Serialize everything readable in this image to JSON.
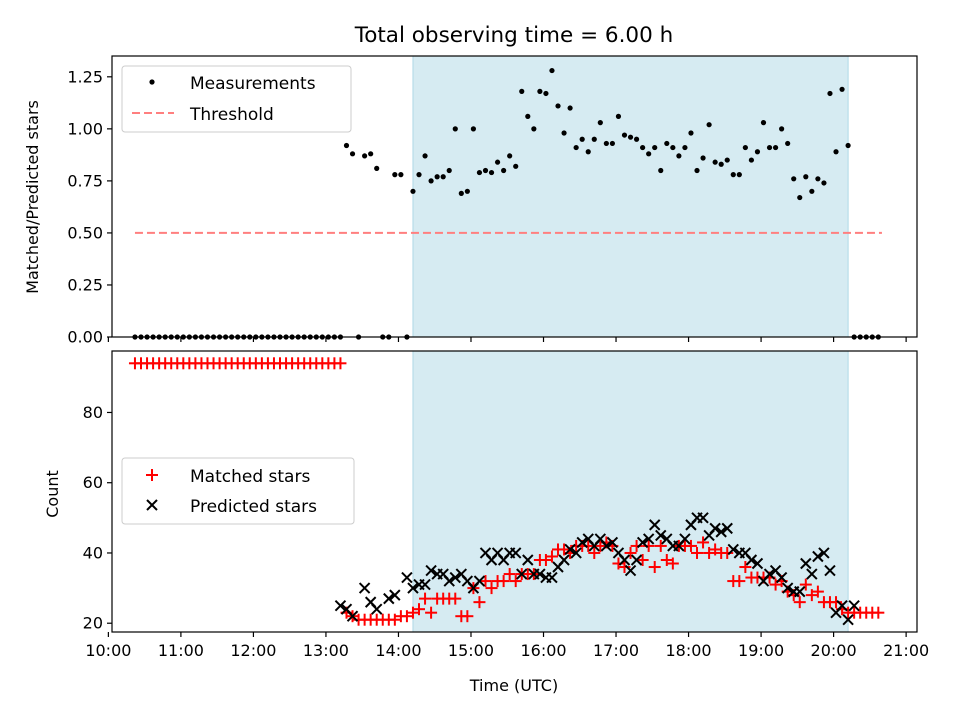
{
  "figure": {
    "title": "Total observing time = 6.00 h"
  },
  "colors": {
    "shade": "#add8e6",
    "measurement": "#000000",
    "threshold": "#ff7f7f",
    "matched": "#ff0000",
    "predicted": "#000000"
  },
  "chart_data": [
    {
      "type": "scatter",
      "title": "Total observing time = 6.00 h",
      "xlabel": "",
      "ylabel": "Matched/Predicted stars",
      "xlim": [
        "10:03",
        "21:09"
      ],
      "ylim": [
        0.0,
        1.35
      ],
      "yticks": [
        "0.00",
        "0.25",
        "0.50",
        "0.75",
        "1.00",
        "1.25"
      ],
      "shaded_interval": [
        "14:12",
        "20:12"
      ],
      "legend": {
        "placement": "top-left",
        "entries": [
          "Measurements",
          "Threshold"
        ]
      },
      "threshold": {
        "name": "Threshold",
        "y": 0.5,
        "x_range": [
          "10:22",
          "20:40"
        ]
      },
      "series": [
        {
          "name": "Measurements",
          "x": [
            "10:22",
            "10:27",
            "10:32",
            "10:37",
            "10:42",
            "10:47",
            "10:52",
            "10:57",
            "11:02",
            "11:07",
            "11:12",
            "11:17",
            "11:22",
            "11:27",
            "11:32",
            "11:37",
            "11:42",
            "11:47",
            "11:52",
            "11:57",
            "12:02",
            "12:07",
            "12:12",
            "12:17",
            "12:22",
            "12:27",
            "12:32",
            "12:37",
            "12:42",
            "12:47",
            "12:52",
            "12:57",
            "13:02",
            "13:07",
            "13:12",
            "13:17",
            "13:22",
            "13:27",
            "13:32",
            "13:37",
            "13:42",
            "13:47",
            "13:52",
            "13:57",
            "14:02",
            "14:07",
            "14:12",
            "14:17",
            "14:22",
            "14:27",
            "14:32",
            "14:37",
            "14:42",
            "14:47",
            "14:52",
            "14:57",
            "15:02",
            "15:07",
            "15:12",
            "15:17",
            "15:22",
            "15:27",
            "15:32",
            "15:37",
            "15:42",
            "15:47",
            "15:52",
            "15:57",
            "16:02",
            "16:07",
            "16:12",
            "16:17",
            "16:22",
            "16:27",
            "16:32",
            "16:37",
            "16:42",
            "16:47",
            "16:52",
            "16:57",
            "17:02",
            "17:07",
            "17:12",
            "17:17",
            "17:22",
            "17:27",
            "17:32",
            "17:37",
            "17:42",
            "17:47",
            "17:52",
            "17:57",
            "18:02",
            "18:07",
            "18:12",
            "18:17",
            "18:22",
            "18:27",
            "18:32",
            "18:37",
            "18:42",
            "18:47",
            "18:52",
            "18:57",
            "19:02",
            "19:07",
            "19:12",
            "19:17",
            "19:22",
            "19:27",
            "19:32",
            "19:37",
            "19:42",
            "19:47",
            "19:52",
            "19:57",
            "20:02",
            "20:07",
            "20:12",
            "20:17",
            "20:22",
            "20:27",
            "20:32",
            "20:37"
          ],
          "y": [
            0,
            0,
            0,
            0,
            0,
            0,
            0,
            0,
            0,
            0,
            0,
            0,
            0,
            0,
            0,
            0,
            0,
            0,
            0,
            0,
            0,
            0,
            0,
            0,
            0,
            0,
            0,
            0,
            0,
            0,
            0,
            0,
            0,
            0,
            0,
            0.92,
            0.88,
            0,
            0.87,
            0.88,
            0.81,
            0,
            0,
            0.78,
            0.78,
            0,
            0.7,
            0.78,
            0.87,
            0.75,
            0.77,
            0.77,
            0.8,
            1.0,
            0.69,
            0.7,
            1.0,
            0.79,
            0.8,
            0.79,
            0.84,
            0.8,
            0.87,
            0.82,
            1.18,
            1.06,
            1.0,
            1.18,
            1.17,
            1.28,
            1.11,
            0.98,
            1.1,
            0.91,
            0.95,
            0.89,
            0.95,
            1.03,
            0.93,
            0.93,
            1.06,
            0.97,
            0.96,
            0.95,
            0.91,
            0.88,
            0.91,
            0.8,
            0.93,
            0.91,
            0.87,
            0.91,
            0.98,
            0.8,
            0.86,
            1.02,
            0.84,
            0.83,
            0.85,
            0.78,
            0.78,
            0.91,
            0.85,
            0.89,
            1.03,
            0.91,
            0.91,
            1.0,
            0.93,
            0.76,
            0.67,
            0.77,
            0.7,
            0.76,
            0.74,
            1.17,
            0.89,
            1.19,
            0.92,
            0,
            0,
            0,
            0,
            0
          ]
        }
      ]
    },
    {
      "type": "scatter",
      "title": "",
      "xlabel": "Time (UTC)",
      "ylabel": "Count",
      "xlim": [
        "10:03",
        "21:09"
      ],
      "ylim": [
        17.5,
        97.5
      ],
      "xticks": [
        "10:00",
        "11:00",
        "12:00",
        "13:00",
        "14:00",
        "15:00",
        "16:00",
        "17:00",
        "18:00",
        "19:00",
        "20:00",
        "21:00"
      ],
      "yticks": [
        "20",
        "40",
        "60",
        "80"
      ],
      "shaded_interval": [
        "14:12",
        "20:12"
      ],
      "legend": {
        "placement": "center-left",
        "entries": [
          "Matched stars",
          "Predicted stars"
        ]
      },
      "series": [
        {
          "name": "Matched stars",
          "x": [
            "10:22",
            "10:27",
            "10:32",
            "10:37",
            "10:42",
            "10:47",
            "10:52",
            "10:57",
            "11:02",
            "11:07",
            "11:12",
            "11:17",
            "11:22",
            "11:27",
            "11:32",
            "11:37",
            "11:42",
            "11:47",
            "11:52",
            "11:57",
            "12:02",
            "12:07",
            "12:12",
            "12:17",
            "12:22",
            "12:27",
            "12:32",
            "12:37",
            "12:42",
            "12:47",
            "12:52",
            "12:57",
            "13:02",
            "13:07",
            "13:12",
            "13:17",
            "13:22",
            "13:27",
            "13:32",
            "13:37",
            "13:42",
            "13:47",
            "13:52",
            "13:57",
            "14:02",
            "14:07",
            "14:12",
            "14:17",
            "14:22",
            "14:27",
            "14:32",
            "14:37",
            "14:42",
            "14:47",
            "14:52",
            "14:57",
            "15:02",
            "15:07",
            "15:12",
            "15:17",
            "15:22",
            "15:27",
            "15:32",
            "15:37",
            "15:42",
            "15:47",
            "15:52",
            "15:57",
            "16:02",
            "16:07",
            "16:12",
            "16:17",
            "16:22",
            "16:27",
            "16:32",
            "16:37",
            "16:42",
            "16:47",
            "16:52",
            "16:57",
            "17:02",
            "17:07",
            "17:12",
            "17:17",
            "17:22",
            "17:27",
            "17:32",
            "17:37",
            "17:42",
            "17:47",
            "17:52",
            "17:57",
            "18:02",
            "18:07",
            "18:12",
            "18:17",
            "18:22",
            "18:27",
            "18:32",
            "18:37",
            "18:42",
            "18:47",
            "18:52",
            "18:57",
            "19:02",
            "19:07",
            "19:12",
            "19:17",
            "19:22",
            "19:27",
            "19:32",
            "19:37",
            "19:42",
            "19:47",
            "19:52",
            "19:57",
            "20:02",
            "20:07",
            "20:12",
            "20:17",
            "20:22",
            "20:27",
            "20:32",
            "20:37"
          ],
          "y": [
            94,
            94,
            94,
            94,
            94,
            94,
            94,
            94,
            94,
            94,
            94,
            94,
            94,
            94,
            94,
            94,
            94,
            94,
            94,
            94,
            94,
            94,
            94,
            94,
            94,
            94,
            94,
            94,
            94,
            94,
            94,
            94,
            94,
            94,
            94,
            23,
            22,
            21,
            21,
            21,
            21,
            21,
            21,
            21,
            22,
            22,
            23,
            24,
            27,
            23,
            27,
            27,
            27,
            27,
            22,
            22,
            30,
            26,
            32,
            30,
            32,
            32,
            34,
            32,
            34,
            34,
            34,
            38,
            38,
            39,
            41,
            41,
            40,
            42,
            42,
            42,
            40,
            42,
            43,
            42,
            37,
            36,
            40,
            42,
            38,
            42,
            36,
            42,
            38,
            37,
            42,
            42,
            42,
            40,
            43,
            40,
            41,
            40,
            40,
            32,
            32,
            36,
            33,
            33,
            33,
            33,
            31,
            32,
            29,
            28,
            26,
            31,
            28,
            29,
            26,
            26,
            26,
            24,
            23,
            23,
            23,
            23,
            23,
            23
          ]
        },
        {
          "name": "Predicted stars",
          "x": [
            "13:12",
            "13:17",
            "13:22",
            "13:32",
            "13:37",
            "13:42",
            "13:52",
            "13:57",
            "14:07",
            "14:12",
            "14:17",
            "14:22",
            "14:27",
            "14:32",
            "14:37",
            "14:42",
            "14:47",
            "14:52",
            "14:57",
            "15:02",
            "15:07",
            "15:12",
            "15:17",
            "15:22",
            "15:27",
            "15:32",
            "15:37",
            "15:42",
            "15:47",
            "15:52",
            "15:57",
            "16:02",
            "16:07",
            "16:12",
            "16:17",
            "16:22",
            "16:27",
            "16:32",
            "16:37",
            "16:42",
            "16:47",
            "16:52",
            "16:57",
            "17:02",
            "17:07",
            "17:12",
            "17:17",
            "17:22",
            "17:27",
            "17:32",
            "17:37",
            "17:42",
            "17:47",
            "17:52",
            "17:57",
            "18:02",
            "18:07",
            "18:12",
            "18:17",
            "18:22",
            "18:27",
            "18:32",
            "18:37",
            "18:42",
            "18:47",
            "18:52",
            "18:57",
            "19:02",
            "19:07",
            "19:12",
            "19:17",
            "19:22",
            "19:27",
            "19:32",
            "19:37",
            "19:42",
            "19:47",
            "19:52",
            "19:57",
            "20:02",
            "20:07",
            "20:12",
            "20:17"
          ],
          "y": [
            25,
            24,
            22,
            30,
            26,
            24,
            27,
            28,
            33,
            30,
            31,
            31,
            35,
            34,
            34,
            32,
            33,
            34,
            32,
            30,
            32,
            40,
            38,
            40,
            38,
            40,
            40,
            34,
            38,
            34,
            34,
            33,
            33,
            36,
            38,
            41,
            40,
            43,
            44,
            42,
            44,
            42,
            43,
            40,
            38,
            35,
            38,
            43,
            44,
            48,
            45,
            44,
            42,
            42,
            44,
            48,
            50,
            50,
            45,
            47,
            46,
            47,
            41,
            40,
            40,
            38,
            37,
            32,
            34,
            35,
            33,
            30,
            29,
            29,
            37,
            34,
            39,
            40,
            35,
            23,
            25,
            21,
            25
          ]
        }
      ]
    }
  ]
}
